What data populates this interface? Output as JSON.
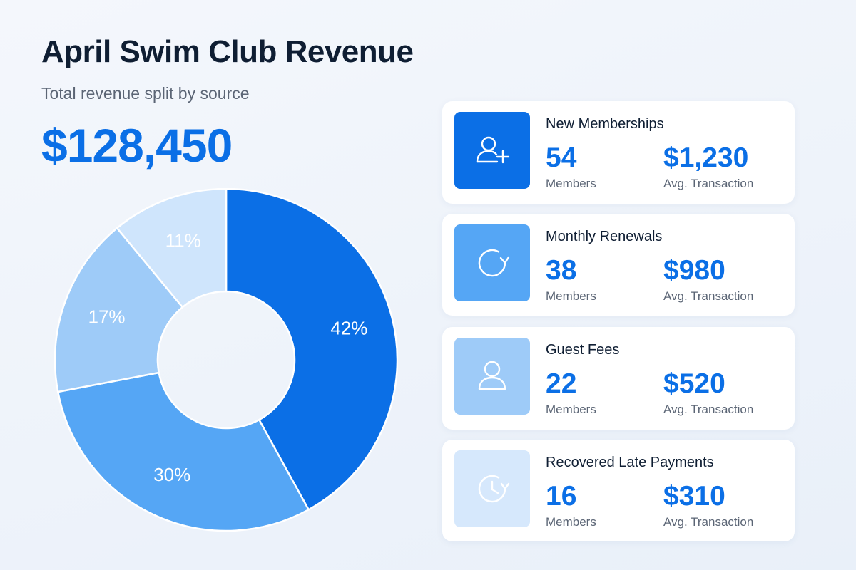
{
  "header": {
    "title": "April Swim Club Revenue",
    "subtitle": "Total revenue split by source",
    "total": "$128,450"
  },
  "colors": {
    "accent": "#0b6fe6",
    "slice_1": "#0b6fe6",
    "slice_2": "#55a6f5",
    "slice_3": "#9ecbf8",
    "slice_4": "#cfe5fc"
  },
  "chart_data": {
    "type": "pie",
    "donut": true,
    "title": "",
    "categories": [
      "New Memberships",
      "Monthly Renewals",
      "Guest Fees",
      "Recovered Late Payments"
    ],
    "values": [
      42,
      30,
      17,
      11
    ],
    "labels": [
      "42%",
      "30%",
      "17%",
      "11%"
    ],
    "unit": "%",
    "start_angle": "top",
    "direction": "clockwise"
  },
  "cards": [
    {
      "title": "New Memberships",
      "icon": "user-plus-icon",
      "members_value": "54",
      "members_label": "Members",
      "avg_value": "$1,230",
      "avg_label": "Avg. Transaction"
    },
    {
      "title": "Monthly Renewals",
      "icon": "refresh-icon",
      "members_value": "38",
      "members_label": "Members",
      "avg_value": "$980",
      "avg_label": "Avg. Transaction"
    },
    {
      "title": "Guest Fees",
      "icon": "user-icon",
      "members_value": "22",
      "members_label": "Members",
      "avg_value": "$520",
      "avg_label": "Avg. Transaction"
    },
    {
      "title": "Recovered Late Payments",
      "icon": "clock-icon",
      "members_value": "16",
      "members_label": "Members",
      "avg_value": "$310",
      "avg_label": "Avg. Transaction"
    }
  ]
}
